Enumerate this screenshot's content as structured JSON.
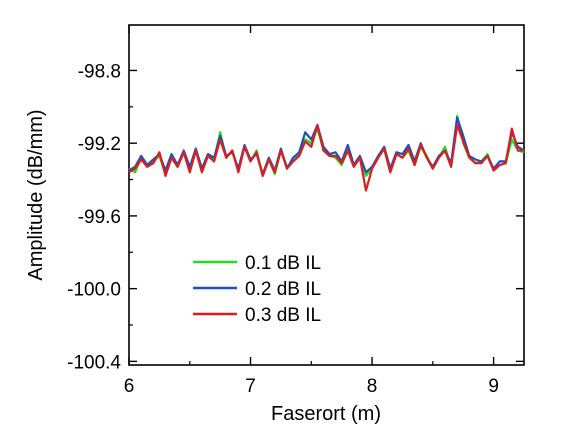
{
  "chart_data": {
    "type": "line",
    "title": "",
    "xlabel": "Faserort (m)",
    "ylabel": "Amplitude (dB/mm)",
    "xlim": [
      6,
      9.25
    ],
    "ylim": [
      -100.42,
      -98.55
    ],
    "x_ticks": [
      6,
      7,
      8,
      9
    ],
    "x_tick_labels": [
      "6",
      "7",
      "8",
      "9"
    ],
    "y_ticks": [
      -98.8,
      -99.2,
      -99.6,
      -100.0,
      -100.4
    ],
    "y_tick_labels": [
      "-98.8",
      "-99.2",
      "-99.6",
      "-100.0",
      "-100.4"
    ],
    "grid": false,
    "legend_position": "lower-left",
    "x": [
      6.0,
      6.05,
      6.1,
      6.15,
      6.2,
      6.25,
      6.3,
      6.35,
      6.4,
      6.45,
      6.5,
      6.55,
      6.6,
      6.65,
      6.7,
      6.75,
      6.8,
      6.85,
      6.9,
      6.95,
      7.0,
      7.05,
      7.1,
      7.15,
      7.2,
      7.25,
      7.3,
      7.35,
      7.4,
      7.45,
      7.5,
      7.55,
      7.6,
      7.65,
      7.7,
      7.75,
      7.8,
      7.85,
      7.9,
      7.95,
      8.0,
      8.05,
      8.1,
      8.15,
      8.2,
      8.25,
      8.3,
      8.35,
      8.4,
      8.45,
      8.5,
      8.55,
      8.6,
      8.65,
      8.7,
      8.75,
      8.8,
      8.85,
      8.9,
      8.95,
      9.0,
      9.05,
      9.1,
      9.15,
      9.2,
      9.25
    ],
    "series": [
      {
        "name": "0.1 dB IL",
        "color": "#22dd22",
        "values": [
          -99.34,
          -99.36,
          -99.28,
          -99.33,
          -99.3,
          -99.27,
          -99.37,
          -99.28,
          -99.33,
          -99.25,
          -99.35,
          -99.24,
          -99.35,
          -99.27,
          -99.29,
          -99.14,
          -99.28,
          -99.24,
          -99.35,
          -99.22,
          -99.3,
          -99.24,
          -99.38,
          -99.29,
          -99.37,
          -99.24,
          -99.33,
          -99.3,
          -99.26,
          -99.18,
          -99.2,
          -99.12,
          -99.24,
          -99.27,
          -99.28,
          -99.32,
          -99.24,
          -99.33,
          -99.28,
          -99.38,
          -99.34,
          -99.28,
          -99.23,
          -99.36,
          -99.26,
          -99.28,
          -99.24,
          -99.32,
          -99.22,
          -99.27,
          -99.34,
          -99.28,
          -99.22,
          -99.33,
          -99.05,
          -99.2,
          -99.28,
          -99.31,
          -99.3,
          -99.26,
          -99.35,
          -99.32,
          -99.31,
          -99.18,
          -99.24,
          -99.25
        ]
      },
      {
        "name": "0.2 dB IL",
        "color": "#1f4fbf",
        "values": [
          -99.35,
          -99.33,
          -99.27,
          -99.32,
          -99.29,
          -99.26,
          -99.35,
          -99.26,
          -99.32,
          -99.24,
          -99.33,
          -99.23,
          -99.34,
          -99.26,
          -99.28,
          -99.16,
          -99.27,
          -99.25,
          -99.34,
          -99.21,
          -99.29,
          -99.26,
          -99.37,
          -99.28,
          -99.35,
          -99.23,
          -99.34,
          -99.28,
          -99.25,
          -99.14,
          -99.18,
          -99.1,
          -99.22,
          -99.26,
          -99.25,
          -99.3,
          -99.21,
          -99.32,
          -99.27,
          -99.36,
          -99.33,
          -99.27,
          -99.22,
          -99.34,
          -99.25,
          -99.26,
          -99.21,
          -99.3,
          -99.2,
          -99.28,
          -99.33,
          -99.27,
          -99.24,
          -99.31,
          -99.06,
          -99.16,
          -99.27,
          -99.29,
          -99.3,
          -99.27,
          -99.34,
          -99.3,
          -99.3,
          -99.14,
          -99.22,
          -99.24
        ]
      },
      {
        "name": "0.3 dB IL",
        "color": "#dd1e1e",
        "values": [
          -99.36,
          -99.34,
          -99.29,
          -99.33,
          -99.31,
          -99.25,
          -99.38,
          -99.28,
          -99.33,
          -99.25,
          -99.36,
          -99.24,
          -99.36,
          -99.27,
          -99.3,
          -99.18,
          -99.28,
          -99.24,
          -99.36,
          -99.22,
          -99.3,
          -99.25,
          -99.38,
          -99.29,
          -99.36,
          -99.24,
          -99.34,
          -99.3,
          -99.27,
          -99.19,
          -99.22,
          -99.1,
          -99.24,
          -99.27,
          -99.27,
          -99.31,
          -99.24,
          -99.33,
          -99.28,
          -99.46,
          -99.34,
          -99.28,
          -99.23,
          -99.36,
          -99.26,
          -99.28,
          -99.23,
          -99.32,
          -99.21,
          -99.28,
          -99.34,
          -99.28,
          -99.24,
          -99.33,
          -99.1,
          -99.19,
          -99.28,
          -99.31,
          -99.31,
          -99.27,
          -99.35,
          -99.32,
          -99.31,
          -99.12,
          -99.24,
          -99.24
        ]
      }
    ]
  }
}
